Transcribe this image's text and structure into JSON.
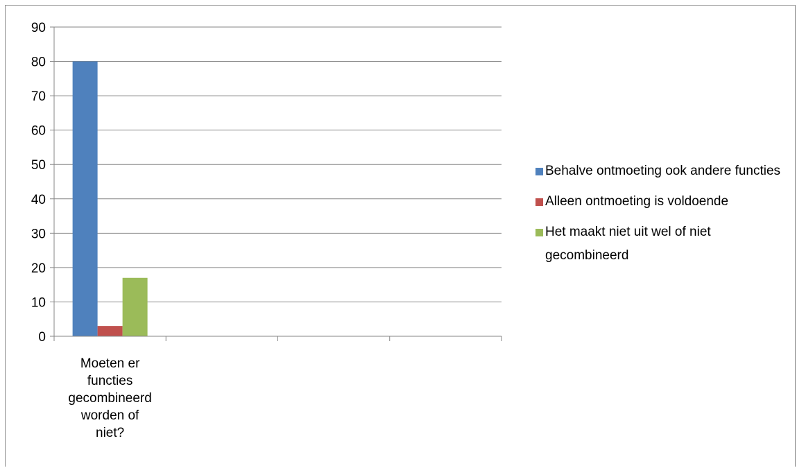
{
  "chart_data": {
    "type": "bar",
    "categories": [
      "Moeten er functies gecombineerd worden of niet?",
      "",
      "",
      ""
    ],
    "series": [
      {
        "name": "Behalve ontmoeting ook andere functies",
        "color": "#4f81bd",
        "values": [
          80,
          null,
          null,
          null
        ]
      },
      {
        "name": "Alleen ontmoeting is voldoende",
        "color": "#c0504d",
        "values": [
          3,
          null,
          null,
          null
        ]
      },
      {
        "name": "Het maakt niet uit wel of niet gecombineerd",
        "color": "#9bbb59",
        "values": [
          17,
          null,
          null,
          null
        ]
      }
    ],
    "y_ticks": [
      "0",
      "10",
      "20",
      "30",
      "40",
      "50",
      "60",
      "70",
      "80",
      "90"
    ],
    "ylim": [
      0,
      90
    ],
    "grid": true,
    "legend": "right",
    "category_label_lines": [
      "Moeten er",
      "functies",
      "gecombineerd",
      "worden of",
      "niet?"
    ]
  }
}
